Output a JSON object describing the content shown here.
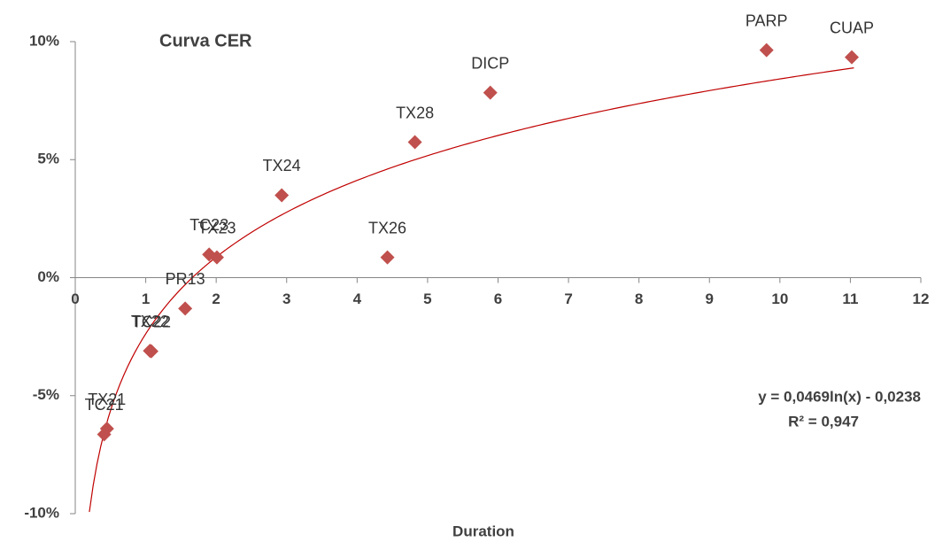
{
  "chart_data": {
    "type": "scatter",
    "title": "Curva CER",
    "x_label": "Duration",
    "x": [
      0.45,
      0.41,
      1.06,
      1.08,
      1.56,
      1.9,
      2.01,
      2.93,
      4.43,
      4.82,
      5.89,
      9.81,
      11.02
    ],
    "values": [
      -6.4,
      -6.64,
      -3.1,
      -3.12,
      -1.31,
      0.98,
      0.86,
      3.49,
      0.86,
      5.74,
      7.84,
      9.64,
      9.34
    ],
    "point_labels": [
      "TX21",
      "TC21",
      "TX22",
      "TC22",
      "PR13",
      "TC23",
      "TX23",
      "TX24",
      "TX26",
      "TX28",
      "DICP",
      "PARP",
      "CUAP"
    ],
    "color": "#c0504d",
    "xlim": [
      0,
      12
    ],
    "xticks": [
      0,
      1,
      2,
      3,
      4,
      5,
      6,
      7,
      8,
      9,
      10,
      11,
      12
    ],
    "ylim": [
      -10,
      10
    ],
    "yticks": [
      {
        "value": -10,
        "label": "-10%"
      },
      {
        "value": -5,
        "label": "-5%"
      },
      {
        "value": 0,
        "label": "0%"
      },
      {
        "value": 5,
        "label": "5%"
      },
      {
        "value": 10,
        "label": "10%"
      }
    ],
    "grid": false,
    "trendline": {
      "type": "log",
      "color": "#c00000",
      "a": 0.0469,
      "b": -0.0238,
      "x_range": [
        0.2,
        11.05
      ],
      "equation": "y = 0,0469ln(x) - 0,0238",
      "r2": "R² = 0,947"
    }
  }
}
